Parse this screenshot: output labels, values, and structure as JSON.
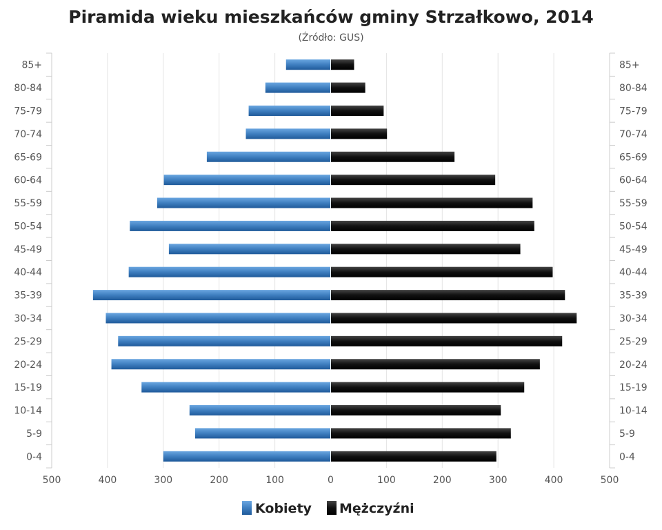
{
  "chart_data": {
    "type": "bar",
    "orientation": "horizontal-pyramid",
    "title": "Piramida wieku mieszkańców gminy Strzałkowo, 2014",
    "subtitle": "(Źródło: GUS)",
    "categories": [
      "85+",
      "80-84",
      "75-79",
      "70-74",
      "65-69",
      "60-64",
      "55-59",
      "50-54",
      "45-49",
      "40-44",
      "35-39",
      "30-34",
      "25-29",
      "20-24",
      "15-19",
      "10-14",
      "5-9",
      "0-4"
    ],
    "series": [
      {
        "name": "Kobiety",
        "side": "left",
        "color": "#3b78b8",
        "values": [
          80,
          117,
          147,
          152,
          222,
          299,
          311,
          360,
          290,
          362,
          426,
          403,
          381,
          393,
          339,
          253,
          243,
          300
        ]
      },
      {
        "name": "Mężczyźni",
        "side": "right",
        "color": "#111111",
        "values": [
          42,
          62,
          95,
          101,
          222,
          295,
          362,
          365,
          340,
          398,
          420,
          441,
          415,
          375,
          347,
          305,
          323,
          297
        ]
      }
    ],
    "x_ticks": [
      "500",
      "400",
      "300",
      "200",
      "100",
      "0",
      "100",
      "200",
      "300",
      "400",
      "500"
    ],
    "xlim": [
      -500,
      500
    ],
    "grid": true,
    "legend_position": "bottom-center"
  }
}
